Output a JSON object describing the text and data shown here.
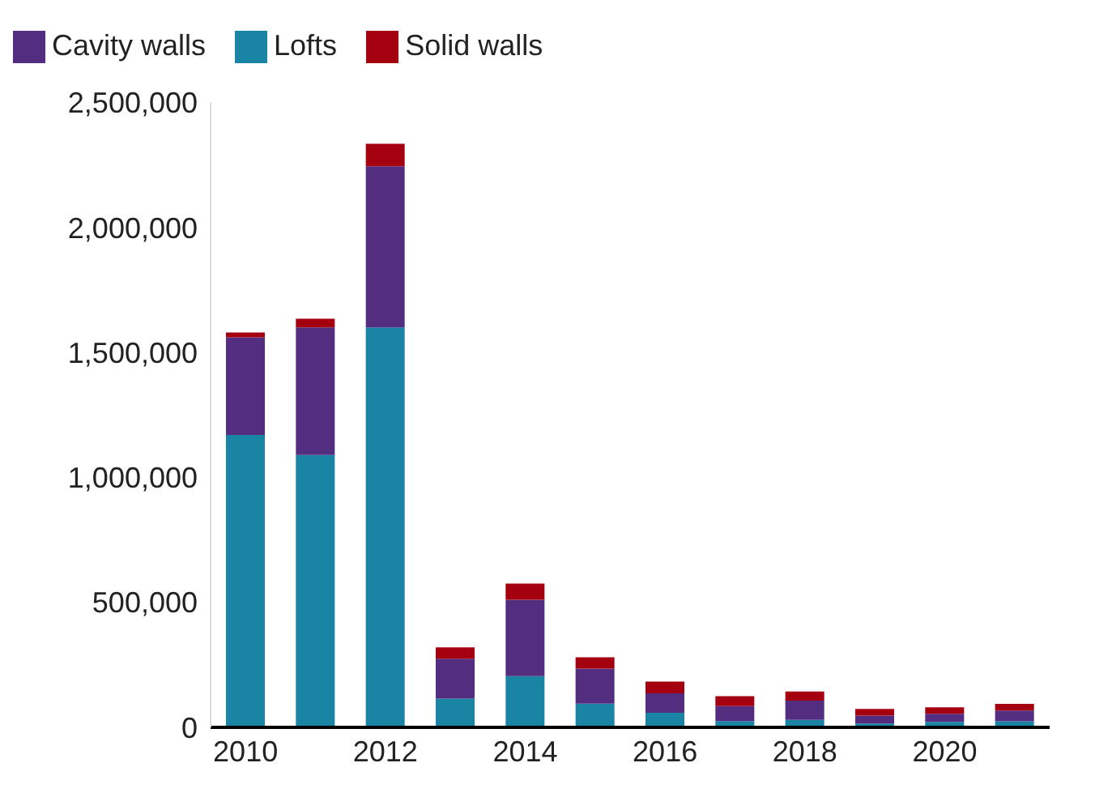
{
  "chart_data": {
    "type": "bar",
    "stacked": true,
    "categories": [
      "2010",
      null,
      "2012",
      null,
      "2014",
      null,
      "2016",
      null,
      "2018",
      null,
      "2020",
      null
    ],
    "series": [
      {
        "name": "Lofts",
        "color": "#1a84a4",
        "values": [
          1170000,
          1090000,
          1600000,
          115000,
          205000,
          95000,
          58000,
          25000,
          30000,
          15000,
          22000,
          24000
        ]
      },
      {
        "name": "Cavity walls",
        "color": "#532d7f",
        "values": [
          390000,
          510000,
          645000,
          160000,
          305000,
          140000,
          78000,
          60000,
          77000,
          32000,
          32000,
          43000
        ]
      },
      {
        "name": "Solid walls",
        "color": "#a50010",
        "values": [
          20000,
          35000,
          90000,
          45000,
          65000,
          45000,
          47000,
          40000,
          36000,
          27000,
          26000,
          27000
        ]
      }
    ],
    "ylim": [
      0,
      2500000
    ],
    "yticks": [
      0,
      {
        "value": 500000,
        "label": "500,000"
      },
      {
        "value": 1000000,
        "label": "1,000,000"
      },
      {
        "value": 1500000,
        "label": "1,500,000"
      },
      {
        "value": 2000000,
        "label": "2,000,000"
      },
      {
        "value": 2500000,
        "label": "2,500,000"
      }
    ],
    "grid": false,
    "legend": "top left"
  }
}
